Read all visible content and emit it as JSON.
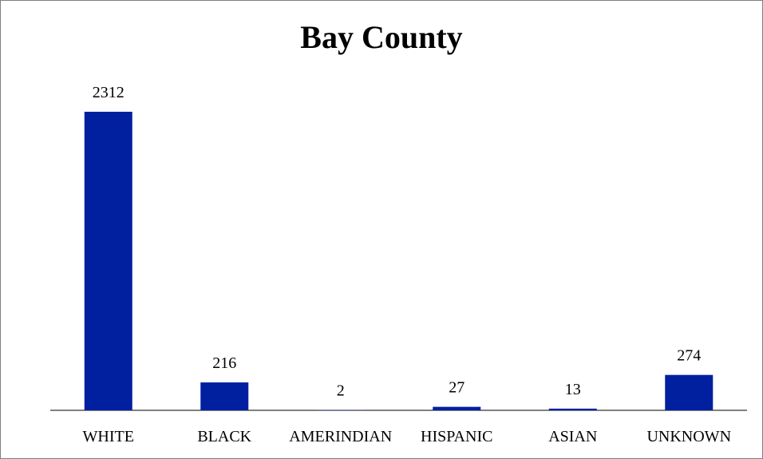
{
  "chart_data": {
    "type": "bar",
    "title": "Bay County",
    "categories": [
      "WHITE",
      "BLACK",
      "AMERINDIAN",
      "HISPANIC",
      "ASIAN",
      "UNKNOWN"
    ],
    "values": [
      2312,
      216,
      2,
      27,
      13,
      274
    ],
    "xlabel": "",
    "ylabel": "",
    "ylim": [
      0,
      2312
    ],
    "grid": false,
    "legend": "none",
    "bar_color": "#0020a0"
  }
}
